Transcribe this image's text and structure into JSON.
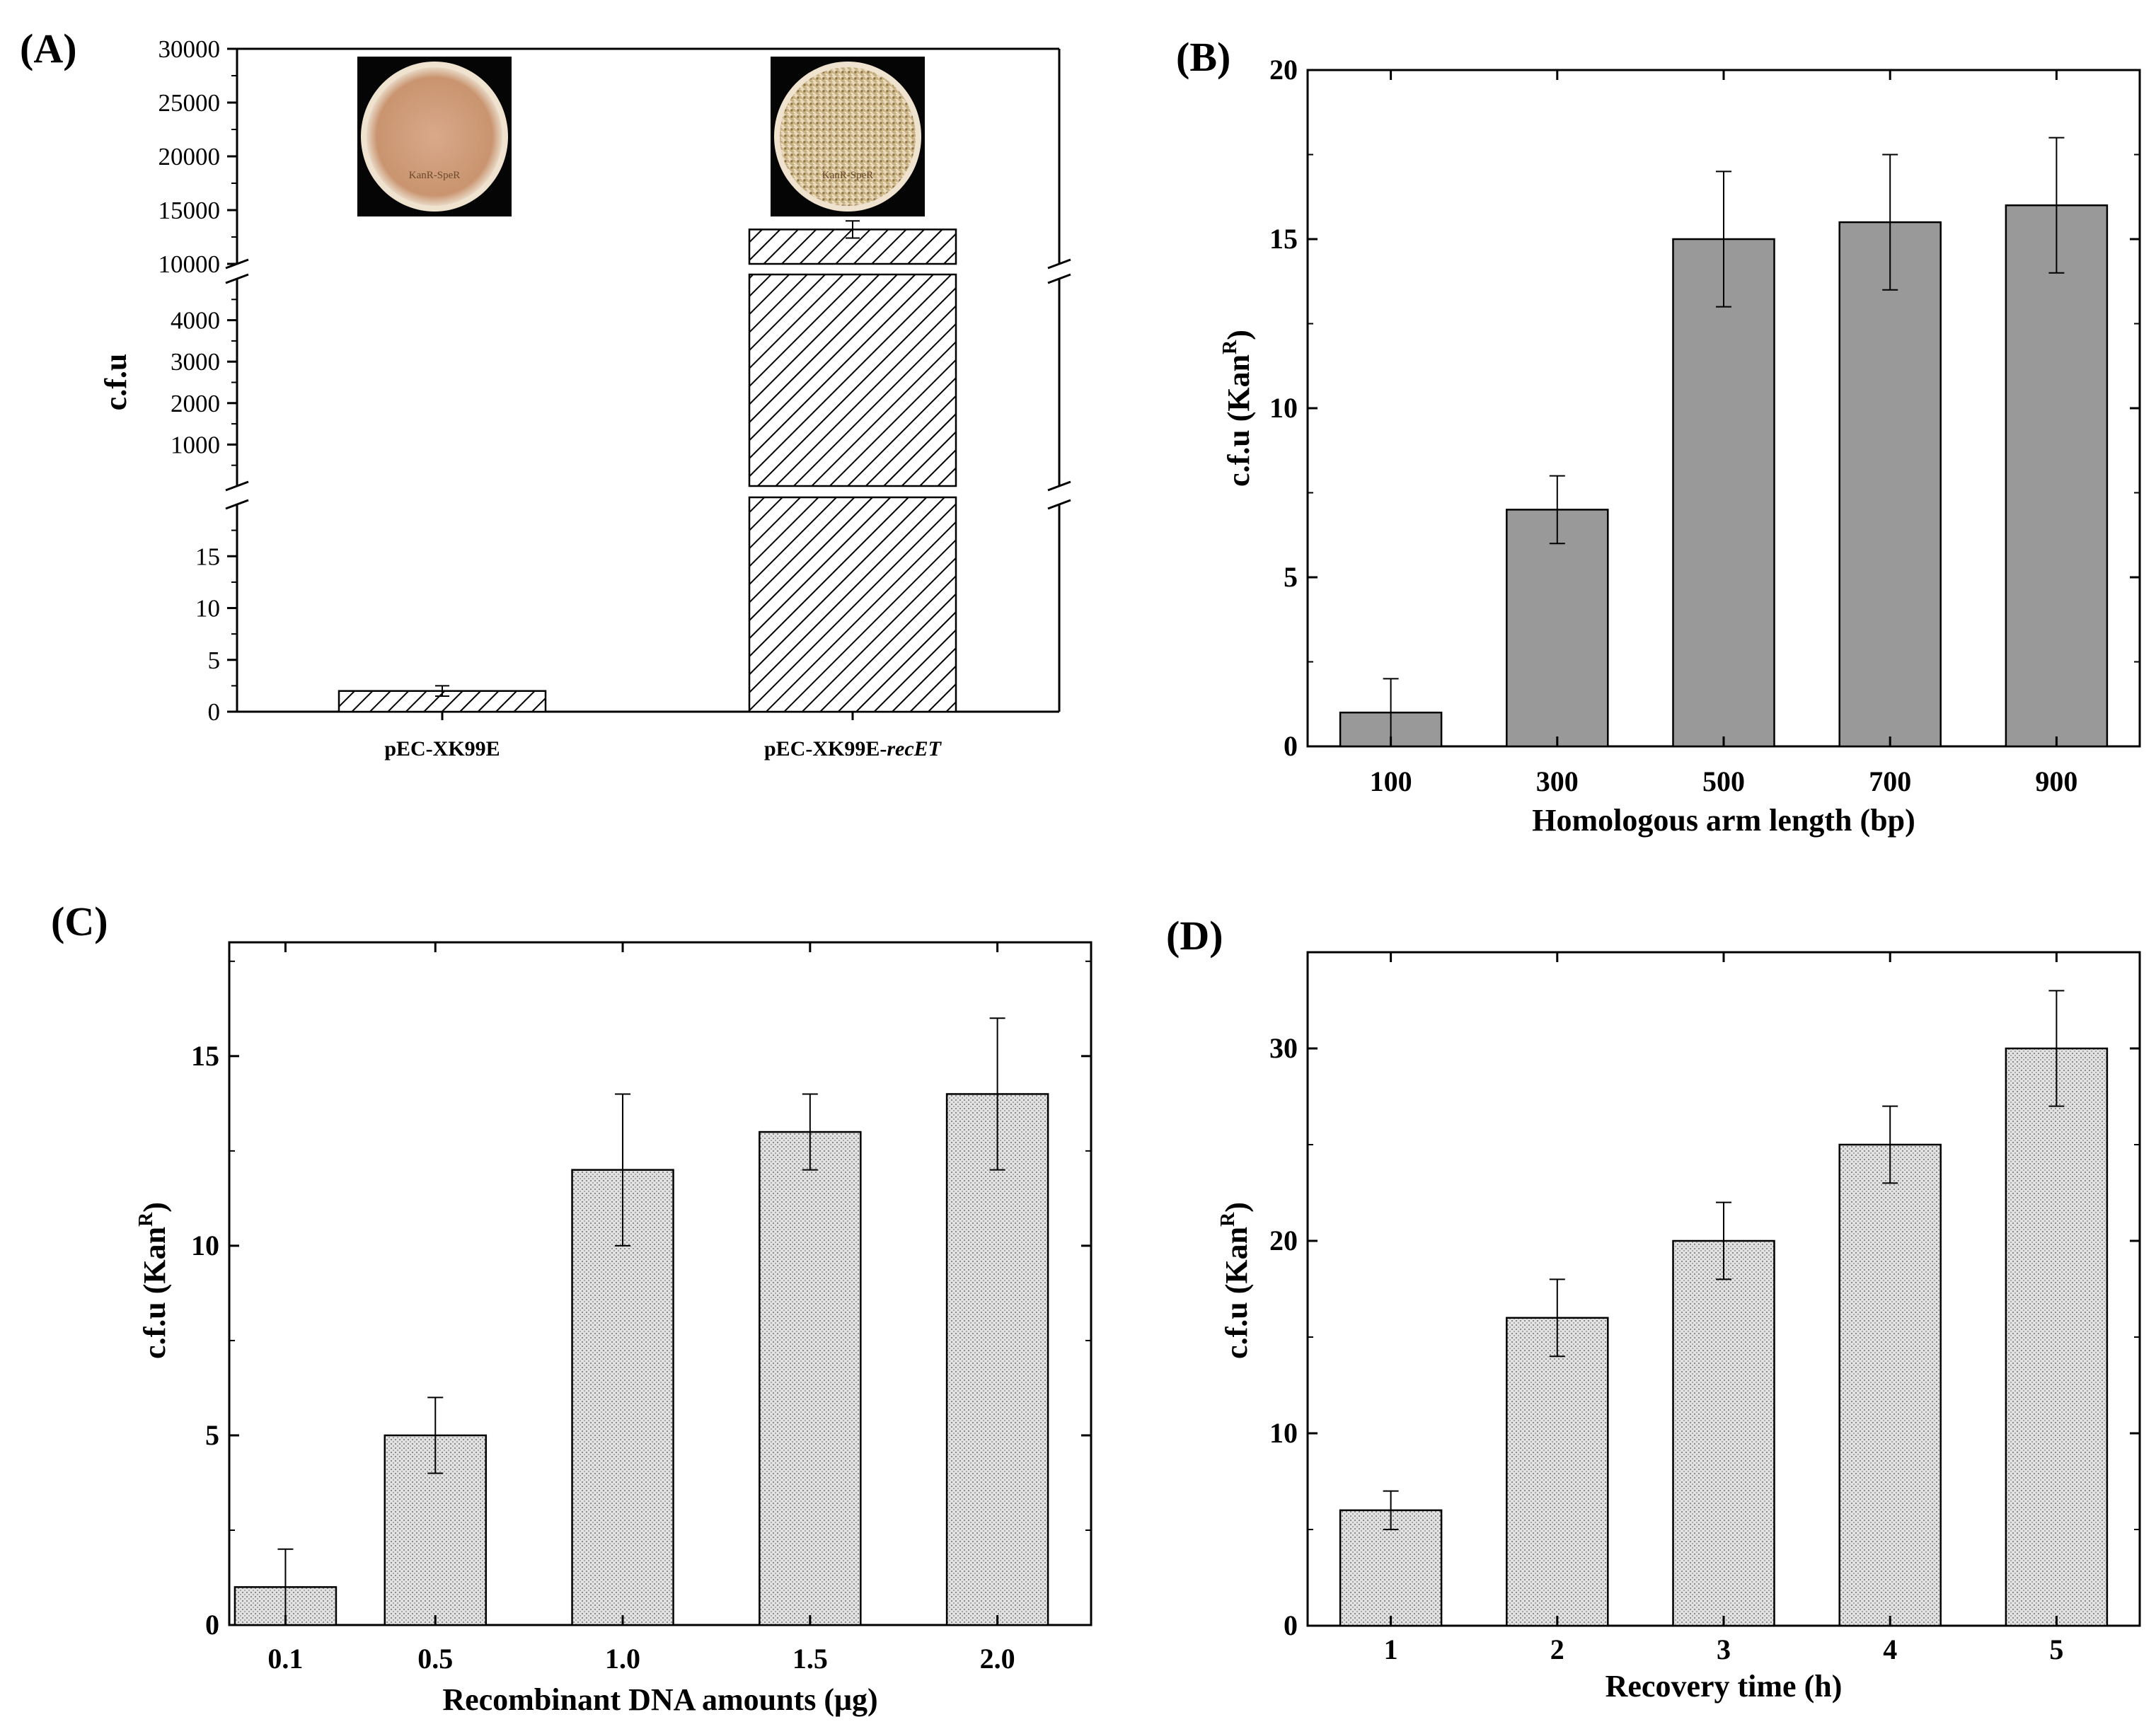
{
  "chart_data": [
    {
      "panel": "(A)",
      "type": "bar",
      "ylabel": "c.f.u",
      "categories": [
        {
          "label": "pEC-XK99E",
          "italic": ""
        },
        {
          "label": "pEC-XK99E-",
          "italic": "recET"
        }
      ],
      "values": [
        2,
        13200
      ],
      "errors": [
        0.5,
        800
      ],
      "y_segments": [
        {
          "range": [
            0,
            20
          ],
          "ticks": [
            "0",
            "5",
            "10",
            "15"
          ],
          "minor": 2.5
        },
        {
          "range": [
            0,
            5000
          ],
          "ticks": [
            "1000",
            "2000",
            "3000",
            "4000"
          ],
          "minor": 500
        },
        {
          "range": [
            10000,
            30000
          ],
          "ticks": [
            "10000",
            "15000",
            "20000",
            "25000",
            "30000"
          ],
          "minor": 2500
        }
      ],
      "axis_breaks": true,
      "fill": "hatched",
      "insets": [
        {
          "category": "pEC-XK99E",
          "text": "KanR-SpeR"
        },
        {
          "category": "pEC-XK99E-recET",
          "text": "KanR-SpeR"
        }
      ]
    },
    {
      "panel": "(B)",
      "type": "bar",
      "xlabel": "Homologous arm length (bp)",
      "ylabel": "c.f.u (Kan",
      "ylabel_sup": "R",
      "ylabel_close": ")",
      "categories": [
        "100",
        "300",
        "500",
        "700",
        "900"
      ],
      "values": [
        1,
        7,
        15,
        15.5,
        16
      ],
      "errors": [
        1,
        1,
        2,
        2,
        2
      ],
      "ylim": [
        0,
        20
      ],
      "yticks": [
        "0",
        "5",
        "10",
        "15",
        "20"
      ],
      "fill": "#999999"
    },
    {
      "panel": "(C)",
      "type": "bar",
      "xlabel": "Recombinant DNA amounts (μg)",
      "ylabel": "c.f.u (Kan",
      "ylabel_sup": "R",
      "ylabel_close": ")",
      "categories": [
        "0.1",
        "0.5",
        "1.0",
        "1.5",
        "2.0"
      ],
      "x": [
        0.1,
        0.5,
        1.0,
        1.5,
        2.0
      ],
      "values": [
        1,
        5,
        12,
        13,
        14
      ],
      "errors": [
        1,
        1,
        2,
        1,
        2
      ],
      "xlim": [
        -0.05,
        2.25
      ],
      "ylim": [
        0,
        18
      ],
      "yticks": [
        "0",
        "5",
        "10",
        "15"
      ],
      "fill": "dotted"
    },
    {
      "panel": "(D)",
      "type": "bar",
      "xlabel": "Recovery time (h)",
      "ylabel": "c.f.u (Kan",
      "ylabel_sup": "R",
      "ylabel_close": ")",
      "categories": [
        "1",
        "2",
        "3",
        "4",
        "5"
      ],
      "values": [
        6,
        16,
        20,
        25,
        30
      ],
      "errors": [
        1,
        2,
        2,
        2,
        3
      ],
      "ylim": [
        0,
        35
      ],
      "yticks": [
        "0",
        "10",
        "20",
        "30"
      ],
      "fill": "dotted"
    }
  ]
}
